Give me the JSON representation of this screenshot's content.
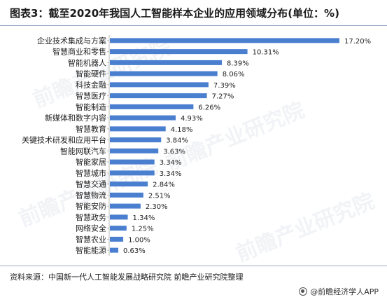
{
  "header": {
    "title": "图表3：截至2020年我国人工智能样本企业的应用领域分布(单位：%)"
  },
  "footer": {
    "source": "资料来源：中国新一代人工智能发展战略研究院 前瞻产业研究院整理",
    "brand": "@前瞻经济学人APP"
  },
  "watermark": "前瞻产业研究院",
  "colors": {
    "bar": "#4a7fd0"
  },
  "chart_data": {
    "type": "bar",
    "orientation": "horizontal",
    "title": "图表3：截至2020年我国人工智能样本企业的应用领域分布(单位：%)",
    "categories": [
      "企业技术集成与方案",
      "智慧商业和零售",
      "智能机器人",
      "智能硬件",
      "科技金融",
      "智慧医疗",
      "智能制造",
      "新媒体和数字内容",
      "智慧教育",
      "关键技术研发和应用平台",
      "智能网联汽车",
      "智能家居",
      "智慧城市",
      "智慧交通",
      "智慧物流",
      "智能安防",
      "智慧政务",
      "网络安全",
      "智慧农业",
      "智能能源"
    ],
    "values": [
      17.2,
      10.31,
      8.39,
      8.06,
      7.39,
      7.27,
      6.26,
      4.93,
      4.18,
      3.84,
      3.63,
      3.34,
      3.34,
      2.84,
      2.51,
      2.3,
      1.34,
      1.25,
      1.0,
      0.63
    ],
    "value_labels": [
      "17.20%",
      "10.31%",
      "8.39%",
      "8.06%",
      "7.39%",
      "7.27%",
      "6.26%",
      "4.93%",
      "4.18%",
      "3.84%",
      "3.63%",
      "3.34%",
      "3.34%",
      "2.84%",
      "2.51%",
      "2.30%",
      "1.34%",
      "1.25%",
      "1.00%",
      "0.63%"
    ],
    "xlim": [
      0,
      17.2
    ],
    "grid": false,
    "legend": "none"
  }
}
